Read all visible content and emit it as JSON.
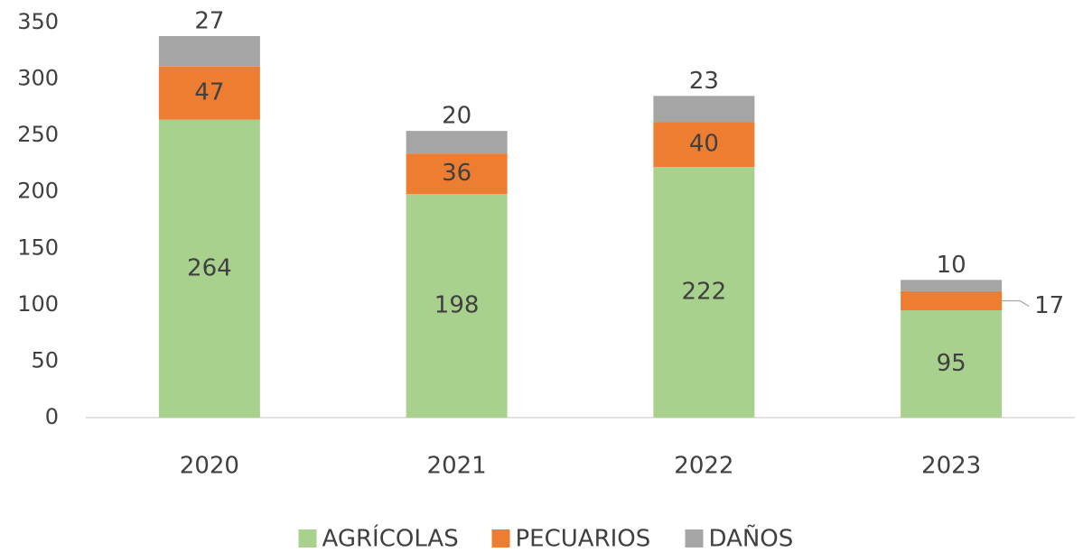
{
  "chart_data": {
    "type": "stacked_bar",
    "categories": [
      "2020",
      "2021",
      "2022",
      "2023"
    ],
    "series": [
      {
        "name": "AGRÍCOLAS",
        "color": "#a9d18e",
        "values": [
          264,
          198,
          222,
          95
        ]
      },
      {
        "name": "PECUARIOS",
        "color": "#ed7d31",
        "values": [
          47,
          36,
          40,
          17
        ]
      },
      {
        "name": "DAÑOS",
        "color": "#a5a5a5",
        "values": [
          27,
          20,
          23,
          10
        ]
      }
    ],
    "ylim": [
      0,
      350
    ],
    "yticks": [
      0,
      50,
      100,
      150,
      200,
      250,
      300,
      350
    ],
    "grid": false,
    "legend": "bottom"
  }
}
